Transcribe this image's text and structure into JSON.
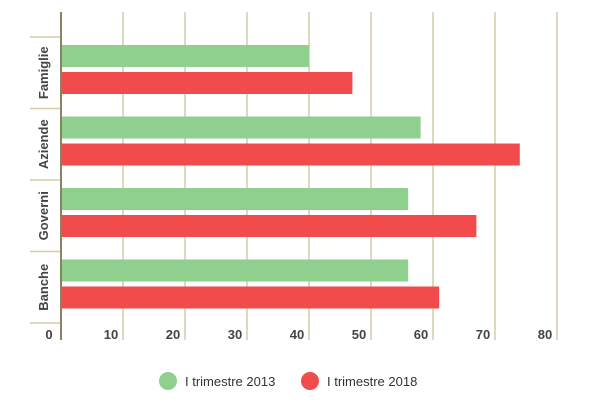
{
  "chart_data": {
    "type": "bar",
    "orientation": "horizontal",
    "categories": [
      "Famiglie",
      "Aziende",
      "Governi",
      "Banche"
    ],
    "series": [
      {
        "name": "I trimestre 2013",
        "color": "#8fd08f",
        "values": [
          40,
          58,
          56,
          56
        ]
      },
      {
        "name": "I trimestre 2018",
        "color": "#f24b4b",
        "values": [
          47,
          74,
          67,
          61
        ]
      }
    ],
    "xlim": [
      0,
      85
    ],
    "xticks": [
      0,
      10,
      20,
      30,
      40,
      50,
      60,
      70,
      80
    ],
    "grid": true,
    "legend": "bottom",
    "title": "",
    "xlabel": "",
    "ylabel": ""
  }
}
